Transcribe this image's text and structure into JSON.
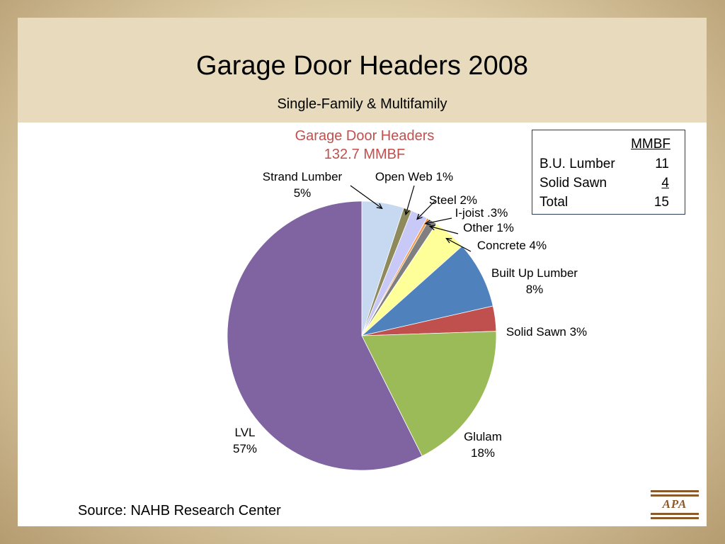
{
  "slide": {
    "title": "Garage Door Headers 2008",
    "subtitle": "Single-Family & Multifamily",
    "source": "Source:  NAHB Research Center",
    "logo_text": "APA",
    "colors": {
      "background": "#dfcfa9",
      "header_band": "#e8dbbd",
      "logo": "#8b5a2b"
    }
  },
  "mmbf_table": {
    "header": "MMBF",
    "rows": [
      {
        "label": "B.U. Lumber",
        "value": "11"
      },
      {
        "label": "Solid Sawn",
        "value": "4"
      },
      {
        "label": "Total",
        "value": "15"
      }
    ]
  },
  "chart_data": {
    "type": "pie",
    "title": "Garage Door Headers",
    "subtitle": "132.7 MMBF",
    "title_color": "#c0504d",
    "start": "12 o'clock, clockwise",
    "slices": [
      {
        "label": "Strand Lumber",
        "pct_label": "5%",
        "value": 5,
        "color": "#c6d9f1"
      },
      {
        "label": "Open Web",
        "pct_label": "1%",
        "value": 1,
        "color": "#8e8a5c"
      },
      {
        "label": "Steel",
        "pct_label": "2%",
        "value": 2,
        "color": "#c9c9f7"
      },
      {
        "label": "I-joist",
        "pct_label": ".3%",
        "value": 0.3,
        "color": "#f79646"
      },
      {
        "label": "Other",
        "pct_label": "1%",
        "value": 1,
        "color": "#7f7f7f"
      },
      {
        "label": "Concrete",
        "pct_label": "4%",
        "value": 4,
        "color": "#ffff99"
      },
      {
        "label": "Built Up Lumber",
        "pct_label": "8%",
        "value": 8,
        "color": "#4f81bd"
      },
      {
        "label": "Solid Sawn",
        "pct_label": "3%",
        "value": 3,
        "color": "#c0504d"
      },
      {
        "label": "Glulam",
        "pct_label": "18%",
        "value": 18,
        "color": "#9bbb59"
      },
      {
        "label": "LVL",
        "pct_label": "57%",
        "value": 57,
        "color": "#8064a2"
      }
    ]
  }
}
